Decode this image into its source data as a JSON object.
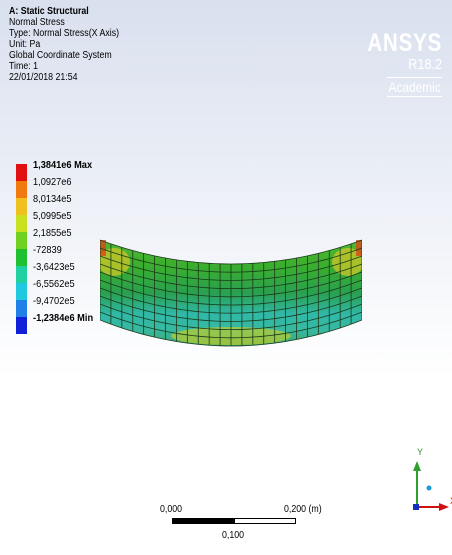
{
  "info": {
    "title": "A: Static Structural",
    "lines": [
      "Normal Stress",
      "Type: Normal Stress(X Axis)",
      "Unit: Pa",
      "Global Coordinate System",
      "Time: 1",
      "22/01/2018 21:54"
    ]
  },
  "brand": {
    "name": "ANSYS",
    "version": "R18.2",
    "license": "Academic"
  },
  "legend": {
    "entries": [
      {
        "label": "1,3841e6 Max",
        "color": "#e01010",
        "bold": true
      },
      {
        "label": "1,0927e6",
        "color": "#f07a10",
        "bold": false
      },
      {
        "label": "8,0134e5",
        "color": "#f0c020",
        "bold": false
      },
      {
        "label": "5,0995e5",
        "color": "#c8e020",
        "bold": false
      },
      {
        "label": "2,1855e5",
        "color": "#70d020",
        "bold": false
      },
      {
        "label": "-72839",
        "color": "#20c030",
        "bold": false
      },
      {
        "label": "-3,6423e5",
        "color": "#20d0a0",
        "bold": false
      },
      {
        "label": "-6,5562e5",
        "color": "#20c8e0",
        "bold": false
      },
      {
        "label": "-9,4702e5",
        "color": "#2080e8",
        "bold": false
      },
      {
        "label": "-1,2384e6 Min",
        "color": "#1020d8",
        "bold": true
      }
    ]
  },
  "scale_bar": {
    "start": "0,000",
    "mid": "0,100",
    "end": "0,200 (m)"
  },
  "triad": {
    "y_label": "Y",
    "x_label": "X"
  }
}
